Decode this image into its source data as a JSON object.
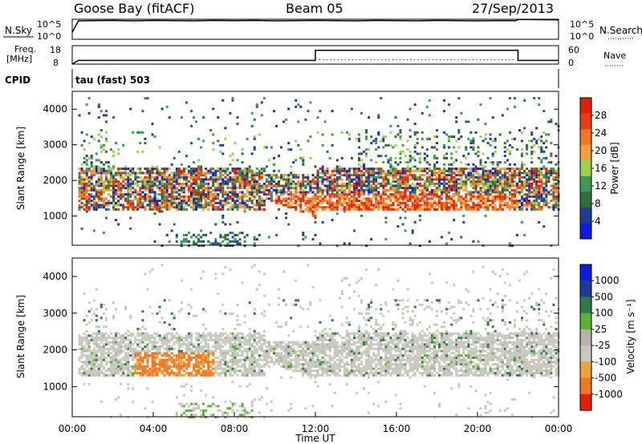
{
  "header": {
    "station": "Goose Bay (fitACF)",
    "beam": "Beam 05",
    "date": "27/Sep/2013"
  },
  "noise_panel": {
    "left_label": "N.Sky",
    "right_label": "N.Search",
    "ticks_top": "10^5",
    "ticks_bottom": "10^0"
  },
  "freq_panel": {
    "left_label_line1": "Freq.",
    "left_label_line2": "[MHz]",
    "right_label": "Nave",
    "left_ticks": [
      "18",
      "8"
    ],
    "right_ticks": [
      "60",
      "0"
    ]
  },
  "cpid": {
    "label": "CPID",
    "value": "tau (fast) 503"
  },
  "colors": {
    "power": [
      "#0a1cdc",
      "#1e3c96",
      "#2f6e3c",
      "#3a9a55",
      "#9ad24a",
      "#f0a03c",
      "#f07820",
      "#e63c14",
      "#e61e00"
    ],
    "velocity": [
      "#e61e00",
      "#f07820",
      "#f0a03c",
      "#c8c8be",
      "#b4b4aa",
      "#5ab432",
      "#2f7a46",
      "#1e3c96",
      "#0a1cdc"
    ]
  },
  "chart_data": [
    {
      "type": "line",
      "title": "N.Sky / N.Search",
      "xlabel": "",
      "ylabel": "",
      "x_hours": [
        0,
        0.3,
        1,
        2,
        3,
        4,
        5,
        6,
        7,
        8,
        9,
        10,
        11,
        12,
        13,
        14,
        15,
        16,
        17,
        18,
        19,
        20,
        21,
        21.9,
        22,
        23,
        24
      ],
      "y_relative": [
        0.35,
        0.92,
        0.93,
        0.94,
        0.92,
        0.94,
        0.93,
        0.92,
        0.94,
        0.93,
        0.94,
        0.92,
        0.93,
        0.94,
        0.93,
        0.92,
        0.94,
        0.93,
        0.92,
        0.94,
        0.93,
        0.92,
        0.93,
        0.93,
        0.99,
        0.98,
        0.97
      ]
    },
    {
      "type": "line",
      "title": "Frequency / Nave",
      "series": [
        {
          "name": "Freq.",
          "x_hours": [
            0,
            0.3,
            12,
            12,
            22,
            22,
            24
          ],
          "values_mhz": [
            8,
            10,
            10,
            15.5,
            15.5,
            10,
            10
          ]
        }
      ],
      "ylim_left": [
        8,
        18
      ],
      "ylim_right": [
        0,
        60
      ]
    },
    {
      "type": "heatmap",
      "title": "Power",
      "colorbar_label": "Power [dB]",
      "colorbar_ticks": [
        "28",
        "24",
        "20",
        "16",
        "12",
        "8",
        "4"
      ],
      "xlabel": "",
      "ylabel": "Slant Range [km]",
      "yticks": [
        "4000",
        "3000",
        "2000",
        "1000"
      ],
      "ylim_km": [
        180,
        4500
      ],
      "xlim_hours": [
        0,
        24
      ]
    },
    {
      "type": "heatmap",
      "title": "Velocity",
      "colorbar_label": "Velocity [m s⁻¹]",
      "colorbar_ticks": [
        "1000",
        "500",
        "100",
        "25",
        "-25",
        "-100",
        "-500",
        "-1000"
      ],
      "xlabel": "Time UT",
      "ylabel": "Slant Range [km]",
      "yticks": [
        "4000",
        "3000",
        "2000",
        "1000"
      ],
      "xticks": [
        "00:00",
        "04:00",
        "08:00",
        "12:00",
        "16:00",
        "20:00",
        "00:00"
      ],
      "ylim_km": [
        180,
        4500
      ],
      "xlim_hours": [
        0,
        24
      ]
    }
  ]
}
